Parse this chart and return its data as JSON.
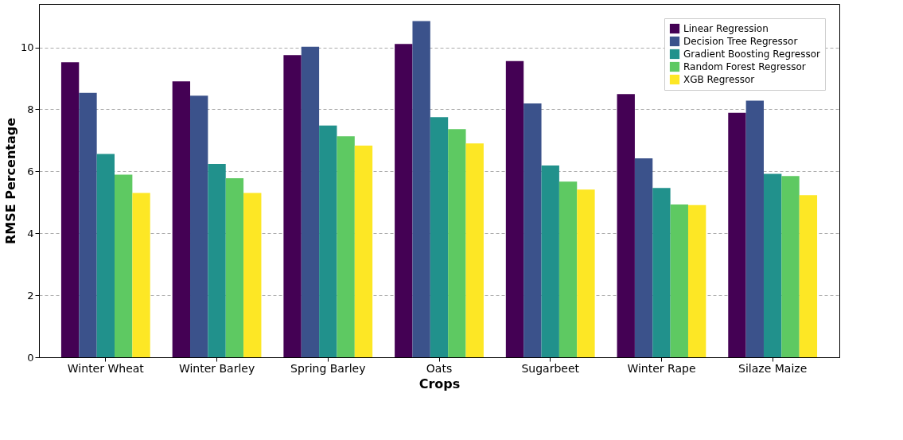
{
  "chart_data": {
    "type": "bar",
    "xlabel": "Crops",
    "ylabel": "RMSE Percentage",
    "categories": [
      "Winter Wheat",
      "Winter Barley",
      "Spring Barley",
      "Oats",
      "Sugarbeet",
      "Winter Rape",
      "Silaze Maize"
    ],
    "series": [
      {
        "name": "Linear Regression",
        "color": "#440154",
        "values": [
          9.52,
          8.9,
          9.75,
          10.11,
          9.56,
          8.49,
          7.89
        ]
      },
      {
        "name": "Decision Tree Regressor",
        "color": "#3b528b",
        "values": [
          8.53,
          8.44,
          10.02,
          10.85,
          8.19,
          6.42,
          8.28
        ]
      },
      {
        "name": "Gradient Boosting Regressor",
        "color": "#21918c",
        "values": [
          6.56,
          6.24,
          7.48,
          7.75,
          6.19,
          5.46,
          5.92
        ]
      },
      {
        "name": "Random Forest Regressor",
        "color": "#5ec962",
        "values": [
          5.89,
          5.78,
          7.13,
          7.36,
          5.67,
          4.93,
          5.85
        ]
      },
      {
        "name": "XGB Regressor",
        "color": "#fde725",
        "values": [
          5.3,
          5.3,
          6.83,
          6.9,
          5.41,
          4.91,
          5.23
        ]
      }
    ],
    "ylim": [
      0,
      11.4
    ],
    "yticks": [
      0,
      2,
      4,
      6,
      8,
      10
    ],
    "grid": "y",
    "legend": "top right"
  }
}
